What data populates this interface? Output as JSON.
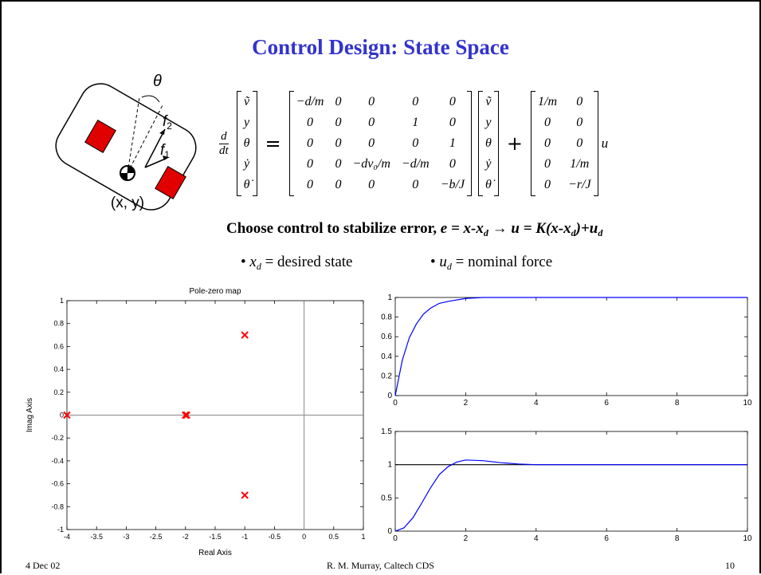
{
  "slide": {
    "title": "Control Design: State Space",
    "diagram": {
      "theta": "θ",
      "f2": [
        "f",
        "2"
      ],
      "f1": [
        "f",
        "1"
      ],
      "position": "(x, y)"
    },
    "equation": {
      "derivative": [
        "d",
        "dt"
      ],
      "state": [
        "ṽ",
        "y",
        "θ",
        "ẏ",
        "θ̇"
      ],
      "equals": "=",
      "A": [
        [
          "−d/m",
          "0",
          "0",
          "0",
          "0"
        ],
        [
          "0",
          "0",
          "0",
          "1",
          "0"
        ],
        [
          "0",
          "0",
          "0",
          "0",
          "1"
        ],
        [
          "0",
          "0",
          "−dv₀/m",
          "−d/m",
          "0"
        ],
        [
          "0",
          "0",
          "0",
          "0",
          "−b/J"
        ]
      ],
      "plus": "+",
      "B": [
        [
          "1/m",
          "0"
        ],
        [
          "0",
          "0"
        ],
        [
          "0",
          "0"
        ],
        [
          "0",
          "1/m"
        ],
        [
          "0",
          "−r/J"
        ]
      ],
      "input": "u"
    },
    "statement": [
      "Choose control to stabilize error, ",
      "e = x-x",
      "d",
      " → ",
      "u = K(x-x",
      "d",
      ")+u",
      "d"
    ],
    "bullets": [
      [
        "• ",
        "x",
        "d",
        " = desired state"
      ],
      [
        "• ",
        "u",
        "d",
        " = nominal force"
      ]
    ],
    "footer": {
      "date": "4 Dec 02",
      "author": "R. M. Murray, Caltech CDS",
      "page": "10"
    }
  },
  "chart_data": [
    {
      "type": "scatter",
      "title": "Pole-zero map",
      "xlabel": "Real Axis",
      "ylabel": "Imag Axis",
      "x": [
        -4,
        -2,
        -1.98,
        -1,
        -1
      ],
      "values": [
        0,
        0,
        0,
        0.7,
        -0.7
      ],
      "color": "#ff0000",
      "marker": "x",
      "xlim": [
        -4,
        1
      ],
      "ylim": [
        -1,
        1
      ],
      "xticks": [
        -4,
        -3.5,
        -3,
        -2.5,
        -2,
        -1.5,
        -1,
        -0.5,
        0,
        0.5,
        1
      ],
      "yticks": [
        -1,
        -0.8,
        -0.6,
        -0.4,
        -0.2,
        0,
        0.2,
        0.4,
        0.6,
        0.8,
        1
      ],
      "zero_lines": true
    },
    {
      "type": "line",
      "x": [
        0,
        0.2,
        0.4,
        0.6,
        0.8,
        1,
        1.25,
        1.5,
        2,
        2.5,
        3,
        4,
        6,
        10
      ],
      "values": [
        0,
        0.36,
        0.59,
        0.73,
        0.83,
        0.89,
        0.94,
        0.96,
        0.99,
        1.0,
        1.0,
        1.0,
        1.0,
        1.0
      ],
      "color": "#0000ff",
      "xlim": [
        0,
        10
      ],
      "ylim": [
        0,
        1
      ],
      "xticks": [
        0,
        2,
        4,
        6,
        8,
        10
      ],
      "yticks": [
        0,
        0.2,
        0.4,
        0.6,
        0.8,
        1
      ]
    },
    {
      "type": "line",
      "x": [
        0,
        0.25,
        0.5,
        0.75,
        1,
        1.25,
        1.5,
        1.75,
        2,
        2.5,
        3,
        3.5,
        4,
        5,
        10
      ],
      "values": [
        0,
        0.05,
        0.2,
        0.42,
        0.65,
        0.85,
        0.97,
        1.04,
        1.07,
        1.06,
        1.03,
        1.01,
        1.0,
        1.0,
        1.0
      ],
      "color": "#0000ff",
      "reference_line": 1,
      "xlim": [
        0,
        10
      ],
      "ylim": [
        0,
        1.5
      ],
      "xticks": [
        0,
        2,
        4,
        6,
        8,
        10
      ],
      "yticks": [
        0,
        0.5,
        1,
        1.5
      ]
    }
  ]
}
